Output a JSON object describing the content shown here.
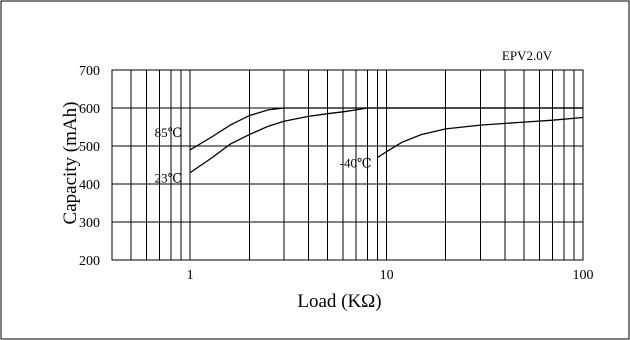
{
  "chart_data": {
    "type": "line",
    "title": "",
    "annotation": "EPV2.0V",
    "xlabel": "Load (KΩ)",
    "ylabel": "Capacity (mAh)",
    "xscale": "log",
    "xlim": [
      0.4,
      100
    ],
    "ylim": [
      200,
      700
    ],
    "yticks": [
      200,
      300,
      400,
      500,
      600,
      700
    ],
    "xticks": [
      1,
      10,
      100
    ],
    "grid": true,
    "series": [
      {
        "name": "85℃",
        "x": [
          1,
          1.3,
          1.6,
          2,
          2.5,
          3,
          4,
          6,
          10,
          100
        ],
        "y": [
          490,
          525,
          555,
          580,
          595,
          600,
          600,
          600,
          600,
          600
        ]
      },
      {
        "name": "23℃",
        "x": [
          1,
          1.3,
          1.6,
          2,
          2.5,
          3,
          4,
          5,
          6,
          7,
          8,
          10,
          100
        ],
        "y": [
          430,
          470,
          505,
          530,
          552,
          565,
          578,
          585,
          590,
          595,
          600,
          600,
          600
        ]
      },
      {
        "name": "-40℃",
        "x": [
          9,
          10,
          12,
          15,
          20,
          30,
          50,
          70,
          100
        ],
        "y": [
          470,
          485,
          510,
          530,
          545,
          555,
          563,
          568,
          575
        ]
      }
    ]
  }
}
